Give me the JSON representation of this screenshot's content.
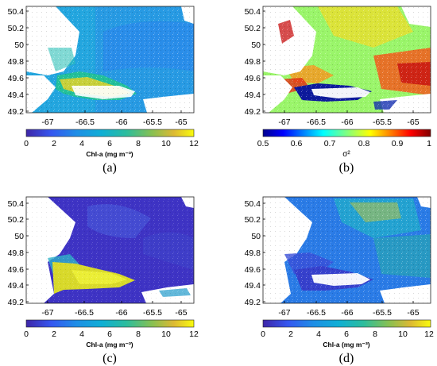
{
  "figure": {
    "panels": [
      {
        "id": "a",
        "label": "(a)",
        "colorbar_label": "Chl-a (mg m⁻³)",
        "colorbar_ticks": [
          "0",
          "2",
          "4",
          "6",
          "8",
          "10",
          "12"
        ],
        "colormap": "parula"
      },
      {
        "id": "b",
        "label": "(b)",
        "colorbar_label": "σ²",
        "colorbar_ticks": [
          "0.5",
          "0.6",
          "0.7",
          "0.8",
          "0.9",
          "1"
        ],
        "colormap": "jet"
      },
      {
        "id": "c",
        "label": "(c)",
        "colorbar_label": "Chl-a (mg m⁻³)",
        "colorbar_ticks": [
          "0",
          "2",
          "4",
          "6",
          "8",
          "10",
          "12"
        ],
        "colormap": "parula"
      },
      {
        "id": "d",
        "label": "(d)",
        "colorbar_label": "Chl-a (mg m⁻³)",
        "colorbar_ticks": [
          "0",
          "2",
          "4",
          "6",
          "8",
          "10",
          "12"
        ],
        "colormap": "parula"
      }
    ],
    "lon_ticks": [
      "-67",
      "-66.5",
      "-66",
      "-65.5",
      "-65"
    ],
    "lat_ticks": [
      "50.4",
      "50.2",
      "50",
      "49.8",
      "49.6",
      "49.4",
      "49.2"
    ],
    "colors": {
      "parula_low": "#3e26a8",
      "parula_mid": "#21b7c6",
      "parula_high": "#f9fb0e",
      "jet_low": "#00008f",
      "jet_mid": "#80ff80",
      "jet_high": "#800000",
      "land": "#ffffff"
    }
  }
}
